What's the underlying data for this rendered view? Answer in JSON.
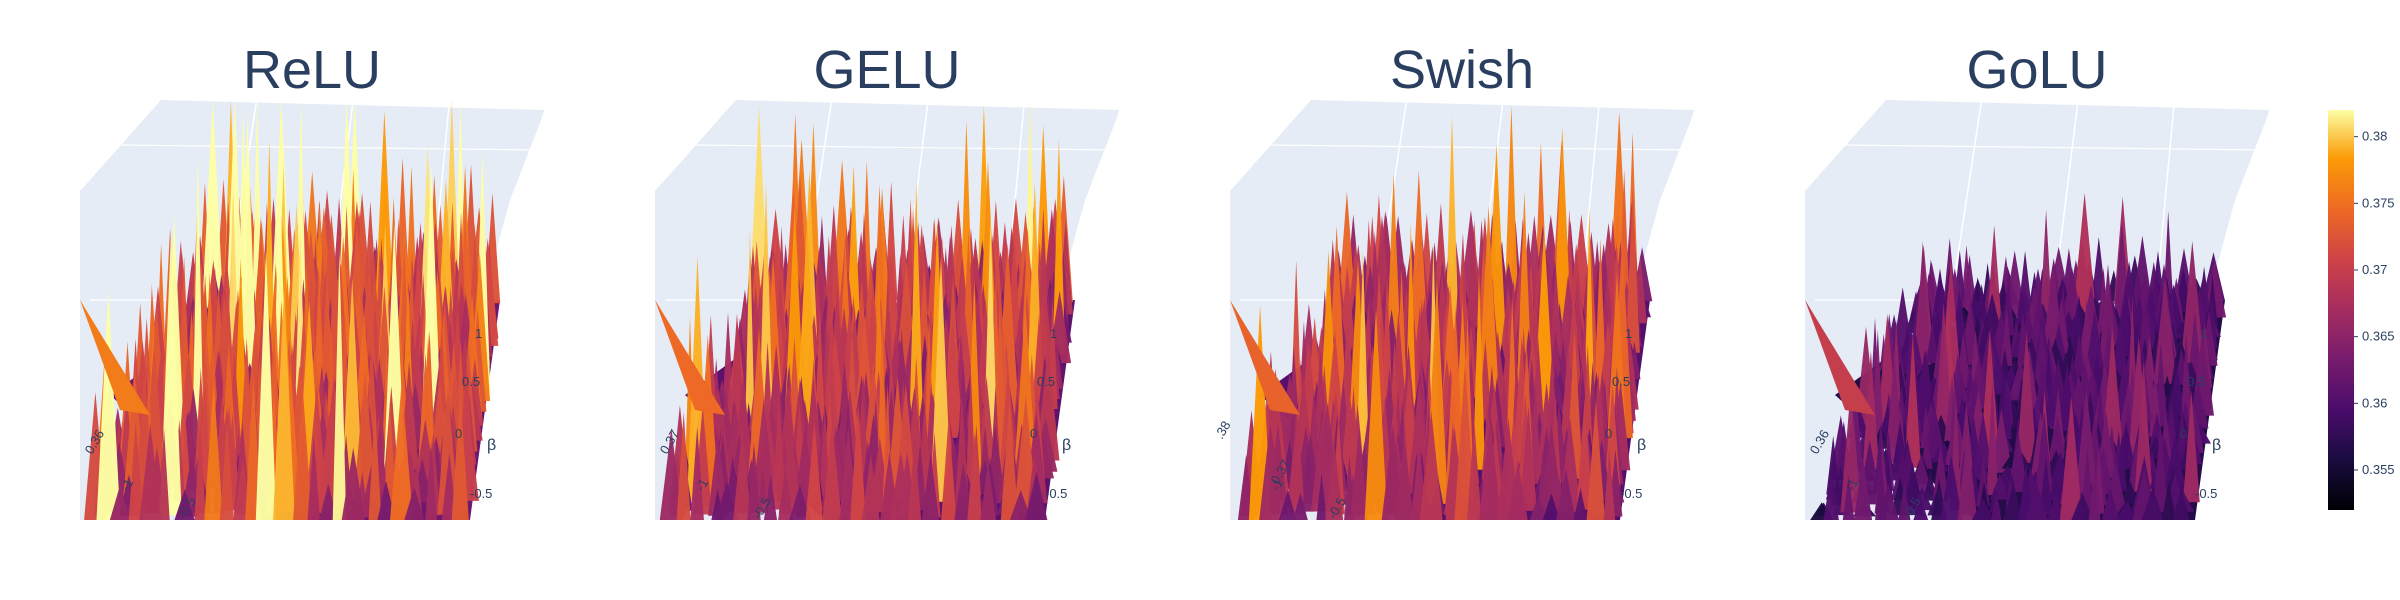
{
  "chart_data": [
    {
      "type": "surface",
      "title": "ReLU",
      "axis_label": "β",
      "x_ticks": [
        "-1",
        "-0.5"
      ],
      "y_ticks": [
        "-0.5",
        "0",
        "0.5",
        "1"
      ],
      "z_ticks": [
        "0.36"
      ],
      "colorscale": "inferno",
      "zlim": [
        0.352,
        0.382
      ]
    },
    {
      "type": "surface",
      "title": "GELU",
      "axis_label": "β",
      "x_ticks": [
        "-1",
        "-0.5"
      ],
      "y_ticks": [
        "-0.5",
        "0",
        "0.5",
        "1"
      ],
      "z_ticks": [
        "0.37"
      ],
      "colorscale": "inferno",
      "zlim": [
        0.352,
        0.382
      ]
    },
    {
      "type": "surface",
      "title": "Swish",
      "axis_label": "β",
      "x_ticks": [
        "-1",
        "-0.5"
      ],
      "y_ticks": [
        "-0.5",
        "0",
        "0.5",
        "1"
      ],
      "z_ticks": [
        ".38",
        "0.37"
      ],
      "colorscale": "inferno",
      "zlim": [
        0.352,
        0.382
      ]
    },
    {
      "type": "surface",
      "title": "GoLU",
      "axis_label": "β",
      "x_ticks": [
        "-1",
        "-0.5"
      ],
      "y_ticks": [
        "-0.5",
        "0",
        "0.5",
        "1"
      ],
      "z_ticks": [
        "0.36"
      ],
      "colorscale": "inferno",
      "zlim": [
        0.352,
        0.382
      ]
    }
  ],
  "colorbar": {
    "ticks": [
      "0.38",
      "0.375",
      "0.37",
      "0.365",
      "0.36",
      "0.355"
    ],
    "tick_values": [
      0.38,
      0.375,
      0.37,
      0.365,
      0.36,
      0.355
    ],
    "range": [
      0.352,
      0.382
    ]
  },
  "colors": {
    "scene_bg": "#e5ecf6",
    "grid": "#ffffff",
    "text": "#2a3f5f"
  }
}
